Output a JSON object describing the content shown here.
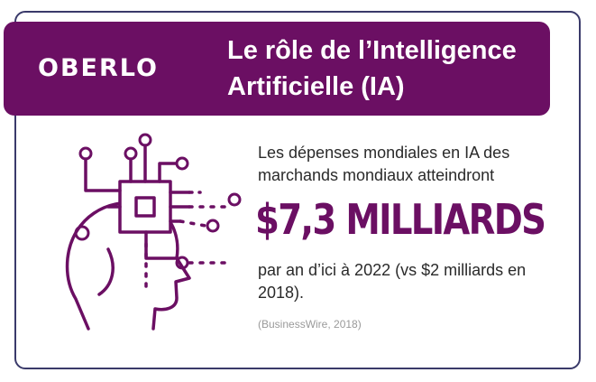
{
  "brand": {
    "logo_text": "OBERLO",
    "primary_color": "#6b0f63",
    "border_color": "#3a3a6a"
  },
  "header": {
    "title_line1": "Le rôle de l’Intelligence",
    "title_line2": "Artificielle (IA)"
  },
  "main": {
    "illustration_icon": "ai-head-circuit-icon",
    "description": "Les dépenses mondiales en IA des marchands mondiaux atteindront",
    "highlight_value": "$7,3 MILLIARDS",
    "subtext": "par an d’ici à 2022 (vs $2 milliards en 2018).",
    "source": "(BusinessWire, 2018)"
  }
}
